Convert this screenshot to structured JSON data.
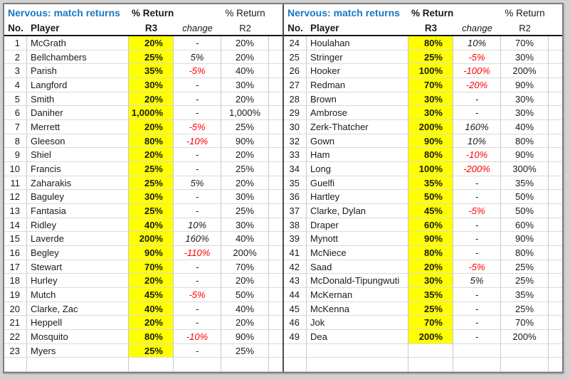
{
  "labels": {
    "title": "Nervous: match returns",
    "pct_return": "% Return",
    "no": "No.",
    "player": "Player",
    "r3": "R3",
    "change": "change",
    "r2": "R2"
  },
  "colors": {
    "title_blue": "#1878C6",
    "highlight_yellow": "#FFFF00",
    "negative_red": "#FF0000"
  },
  "tables": [
    {
      "empty_rows": 1,
      "rows": [
        {
          "no": "1",
          "player": "McGrath",
          "r3": "20%",
          "change": "-",
          "r2": "20%"
        },
        {
          "no": "2",
          "player": "Bellchambers",
          "r3": "25%",
          "change": "5%",
          "r2": "20%"
        },
        {
          "no": "3",
          "player": "Parish",
          "r3": "35%",
          "change": "-5%",
          "r2": "40%"
        },
        {
          "no": "4",
          "player": "Langford",
          "r3": "30%",
          "change": "-",
          "r2": "30%"
        },
        {
          "no": "5",
          "player": "Smith",
          "r3": "20%",
          "change": "-",
          "r2": "20%"
        },
        {
          "no": "6",
          "player": "Daniher",
          "r3": "1,000%",
          "change": "-",
          "r2": "1,000%"
        },
        {
          "no": "7",
          "player": "Merrett",
          "r3": "20%",
          "change": "-5%",
          "r2": "25%"
        },
        {
          "no": "8",
          "player": "Gleeson",
          "r3": "80%",
          "change": "-10%",
          "r2": "90%"
        },
        {
          "no": "9",
          "player": "Shiel",
          "r3": "20%",
          "change": "-",
          "r2": "20%"
        },
        {
          "no": "10",
          "player": "Francis",
          "r3": "25%",
          "change": "-",
          "r2": "25%"
        },
        {
          "no": "11",
          "player": "Zaharakis",
          "r3": "25%",
          "change": "5%",
          "r2": "20%"
        },
        {
          "no": "12",
          "player": "Baguley",
          "r3": "30%",
          "change": "-",
          "r2": "30%"
        },
        {
          "no": "13",
          "player": "Fantasia",
          "r3": "25%",
          "change": "-",
          "r2": "25%"
        },
        {
          "no": "14",
          "player": "Ridley",
          "r3": "40%",
          "change": "10%",
          "r2": "30%"
        },
        {
          "no": "15",
          "player": "Laverde",
          "r3": "200%",
          "change": "160%",
          "r2": "40%"
        },
        {
          "no": "16",
          "player": "Begley",
          "r3": "90%",
          "change": "-110%",
          "r2": "200%"
        },
        {
          "no": "17",
          "player": "Stewart",
          "r3": "70%",
          "change": "-",
          "r2": "70%"
        },
        {
          "no": "18",
          "player": "Hurley",
          "r3": "20%",
          "change": "-",
          "r2": "20%"
        },
        {
          "no": "19",
          "player": "Mutch",
          "r3": "45%",
          "change": "-5%",
          "r2": "50%"
        },
        {
          "no": "20",
          "player": "Clarke, Zac",
          "r3": "40%",
          "change": "-",
          "r2": "40%"
        },
        {
          "no": "21",
          "player": "Heppell",
          "r3": "20%",
          "change": "-",
          "r2": "20%"
        },
        {
          "no": "22",
          "player": "Mosquito",
          "r3": "80%",
          "change": "-10%",
          "r2": "90%"
        },
        {
          "no": "23",
          "player": "Myers",
          "r3": "25%",
          "change": "-",
          "r2": "25%"
        }
      ]
    },
    {
      "empty_rows": 2,
      "rows": [
        {
          "no": "24",
          "player": "Houlahan",
          "r3": "80%",
          "change": "10%",
          "r2": "70%"
        },
        {
          "no": "25",
          "player": "Stringer",
          "r3": "25%",
          "change": "-5%",
          "r2": "30%"
        },
        {
          "no": "26",
          "player": "Hooker",
          "r3": "100%",
          "change": "-100%",
          "r2": "200%"
        },
        {
          "no": "27",
          "player": "Redman",
          "r3": "70%",
          "change": "-20%",
          "r2": "90%"
        },
        {
          "no": "28",
          "player": "Brown",
          "r3": "30%",
          "change": "-",
          "r2": "30%"
        },
        {
          "no": "29",
          "player": "Ambrose",
          "r3": "30%",
          "change": "-",
          "r2": "30%"
        },
        {
          "no": "30",
          "player": "Zerk-Thatcher",
          "r3": "200%",
          "change": "160%",
          "r2": "40%"
        },
        {
          "no": "32",
          "player": "Gown",
          "r3": "90%",
          "change": "10%",
          "r2": "80%"
        },
        {
          "no": "33",
          "player": "Ham",
          "r3": "80%",
          "change": "-10%",
          "r2": "90%"
        },
        {
          "no": "34",
          "player": "Long",
          "r3": "100%",
          "change": "-200%",
          "r2": "300%"
        },
        {
          "no": "35",
          "player": "Guelfi",
          "r3": "35%",
          "change": "-",
          "r2": "35%"
        },
        {
          "no": "36",
          "player": "Hartley",
          "r3": "50%",
          "change": "-",
          "r2": "50%"
        },
        {
          "no": "37",
          "player": "Clarke, Dylan",
          "r3": "45%",
          "change": "-5%",
          "r2": "50%"
        },
        {
          "no": "38",
          "player": "Draper",
          "r3": "60%",
          "change": "-",
          "r2": "60%"
        },
        {
          "no": "39",
          "player": "Mynott",
          "r3": "90%",
          "change": "-",
          "r2": "90%"
        },
        {
          "no": "41",
          "player": "McNiece",
          "r3": "80%",
          "change": "-",
          "r2": "80%"
        },
        {
          "no": "42",
          "player": "Saad",
          "r3": "20%",
          "change": "-5%",
          "r2": "25%"
        },
        {
          "no": "43",
          "player": "McDonald-Tipungwuti",
          "r3": "30%",
          "change": "5%",
          "r2": "25%"
        },
        {
          "no": "44",
          "player": "McKernan",
          "r3": "35%",
          "change": "-",
          "r2": "35%"
        },
        {
          "no": "45",
          "player": "McKenna",
          "r3": "25%",
          "change": "-",
          "r2": "25%"
        },
        {
          "no": "46",
          "player": "Jok",
          "r3": "70%",
          "change": "-",
          "r2": "70%"
        },
        {
          "no": "49",
          "player": "Dea",
          "r3": "200%",
          "change": "-",
          "r2": "200%"
        }
      ]
    }
  ]
}
